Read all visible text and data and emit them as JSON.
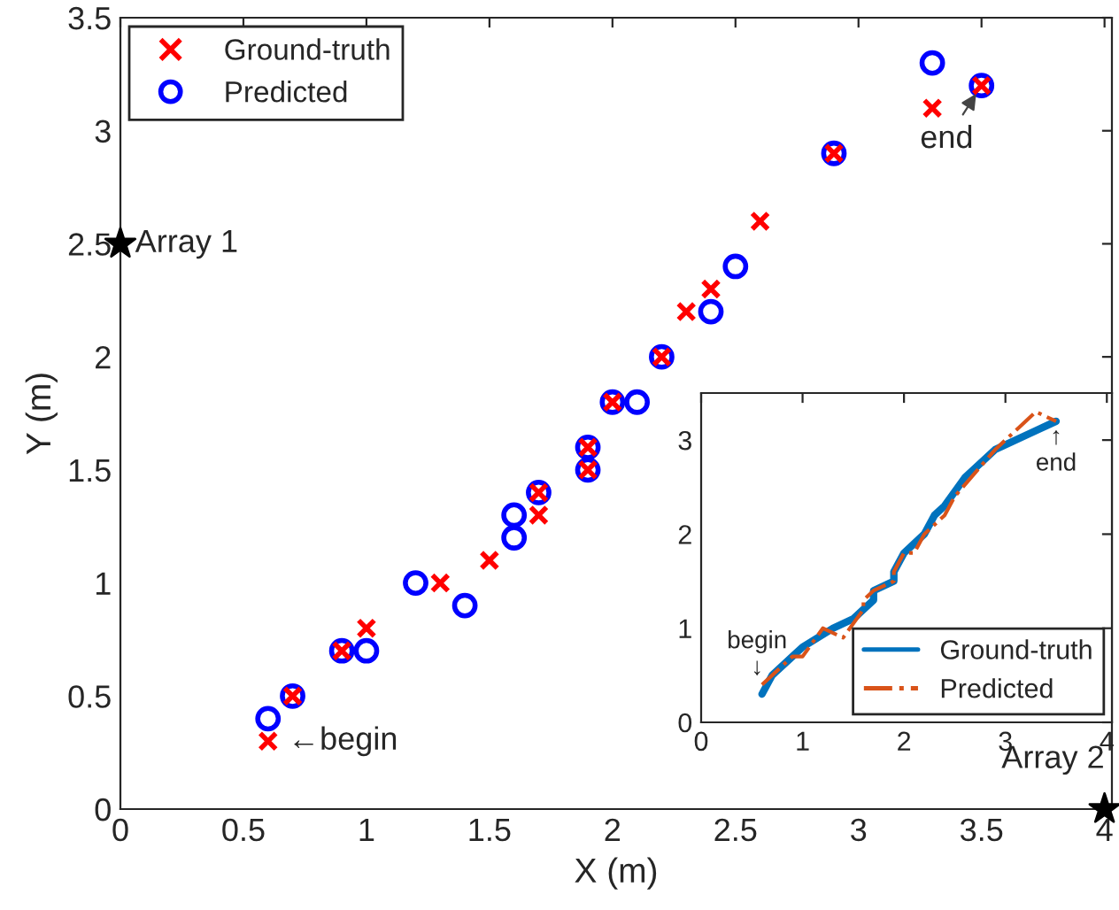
{
  "chart_data": [
    {
      "type": "scatter",
      "xlabel": "X (m)",
      "ylabel": "Y (m)",
      "xlim": [
        0,
        4.03
      ],
      "ylim": [
        0,
        3.5
      ],
      "xticks": [
        0,
        0.5,
        1,
        1.5,
        2,
        2.5,
        3,
        3.5,
        4
      ],
      "yticks": [
        0,
        0.5,
        1,
        1.5,
        2,
        2.5,
        3,
        3.5
      ],
      "grid": false,
      "legend": "top left",
      "series": [
        {
          "name": "Ground-truth",
          "color": "#ff0000",
          "marker": "cross",
          "x": [
            0.6,
            0.7,
            0.9,
            1.0,
            1.3,
            1.5,
            1.7,
            1.7,
            1.9,
            1.9,
            2.0,
            2.2,
            2.3,
            2.4,
            2.6,
            2.9,
            3.3,
            3.5
          ],
          "values": [
            0.3,
            0.5,
            0.7,
            0.8,
            1.0,
            1.1,
            1.3,
            1.4,
            1.5,
            1.6,
            1.8,
            2.0,
            2.2,
            2.3,
            2.6,
            2.9,
            3.1,
            3.2
          ]
        },
        {
          "name": "Predicted",
          "color": "#0000ff",
          "marker": "circle",
          "x": [
            0.6,
            0.7,
            0.9,
            1.0,
            1.2,
            1.4,
            1.6,
            1.6,
            1.7,
            1.9,
            1.9,
            2.0,
            2.1,
            2.2,
            2.4,
            2.5,
            2.9,
            3.3,
            3.5
          ],
          "values": [
            0.4,
            0.5,
            0.7,
            0.7,
            1.0,
            0.9,
            1.2,
            1.3,
            1.4,
            1.5,
            1.6,
            1.8,
            1.8,
            2.0,
            2.2,
            2.4,
            2.9,
            3.3,
            3.2
          ]
        },
        {
          "color": "#000000",
          "marker": "star",
          "x": [
            0,
            4
          ],
          "values": [
            2.5,
            0
          ]
        }
      ],
      "annotations": [
        {
          "text": "←begin",
          "x": 0.6,
          "y": 0.3
        },
        {
          "text": "end",
          "x": 3.5,
          "y": 3.2
        },
        {
          "text": "Array 1",
          "x": 0,
          "y": 2.5
        },
        {
          "text": "Array 2",
          "x": 4,
          "y": 0
        }
      ]
    },
    {
      "type": "line",
      "xlim": [
        0,
        4.05
      ],
      "ylim": [
        0,
        3.5
      ],
      "xticks": [
        0,
        1,
        2,
        3,
        4
      ],
      "yticks": [
        0,
        1,
        2,
        3
      ],
      "grid": false,
      "legend": "bottom right",
      "series": [
        {
          "name": "Ground-truth",
          "color": "#0072bd",
          "line_style": "solid",
          "x": [
            0.6,
            0.7,
            0.9,
            1.0,
            1.3,
            1.5,
            1.7,
            1.7,
            1.9,
            1.9,
            2.0,
            2.2,
            2.3,
            2.4,
            2.6,
            2.9,
            3.3,
            3.5
          ],
          "values": [
            0.3,
            0.5,
            0.7,
            0.8,
            1.0,
            1.1,
            1.3,
            1.4,
            1.5,
            1.6,
            1.8,
            2.0,
            2.2,
            2.3,
            2.6,
            2.9,
            3.1,
            3.2
          ]
        },
        {
          "name": "Predicted",
          "color": "#d95319",
          "line_style": "dashdot",
          "x": [
            0.6,
            0.7,
            0.9,
            1.0,
            1.2,
            1.4,
            1.6,
            1.6,
            1.7,
            1.9,
            1.9,
            2.0,
            2.1,
            2.2,
            2.4,
            2.5,
            2.9,
            3.3,
            3.5
          ],
          "values": [
            0.4,
            0.5,
            0.7,
            0.7,
            1.0,
            0.9,
            1.2,
            1.3,
            1.4,
            1.5,
            1.6,
            1.8,
            1.8,
            2.0,
            2.2,
            2.4,
            2.9,
            3.3,
            3.2
          ]
        }
      ],
      "annotations": [
        {
          "text": "begin\n↓",
          "x": 0.6,
          "y": 0.4
        },
        {
          "text": "↑\nend",
          "x": 3.5,
          "y": 3.2
        }
      ]
    }
  ]
}
